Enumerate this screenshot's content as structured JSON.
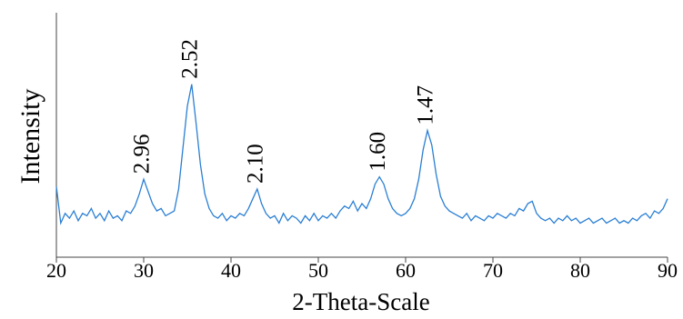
{
  "chart_data": {
    "type": "line",
    "x_label": "2-Theta-Scale",
    "y_label": "Intensity",
    "xlim": [
      20,
      90
    ],
    "xticks": [
      20,
      30,
      40,
      50,
      60,
      70,
      80,
      90
    ],
    "ylim": [
      0,
      100
    ],
    "series": [
      {
        "color": "#2a7fd4",
        "x": [
          20,
          20.5,
          21,
          21.5,
          22,
          22.5,
          23,
          23.5,
          24,
          24.5,
          25,
          25.5,
          26,
          26.5,
          27,
          27.5,
          28,
          28.5,
          29,
          29.5,
          30,
          30.5,
          31,
          31.5,
          32,
          32.5,
          33,
          33.5,
          34,
          34.5,
          35,
          35.5,
          36,
          36.5,
          37,
          37.5,
          38,
          38.5,
          39,
          39.5,
          40,
          40.5,
          41,
          41.5,
          42,
          42.5,
          43,
          43.5,
          44,
          44.5,
          45,
          45.5,
          46,
          46.5,
          47,
          47.5,
          48,
          48.5,
          49,
          49.5,
          50,
          50.5,
          51,
          51.5,
          52,
          52.5,
          53,
          53.5,
          54,
          54.5,
          55,
          55.5,
          56,
          56.5,
          57,
          57.5,
          58,
          58.5,
          59,
          59.5,
          60,
          60.5,
          61,
          61.5,
          62,
          62.5,
          63,
          63.5,
          64,
          64.5,
          65,
          65.5,
          66,
          66.5,
          67,
          67.5,
          68,
          68.5,
          69,
          69.5,
          70,
          70.5,
          71,
          71.5,
          72,
          72.5,
          73,
          73.5,
          74,
          74.5,
          75,
          75.5,
          76,
          76.5,
          77,
          77.5,
          78,
          78.5,
          79,
          79.5,
          80,
          80.5,
          81,
          81.5,
          82,
          82.5,
          83,
          83.5,
          84,
          84.5,
          85,
          85.5,
          86,
          86.5,
          87,
          87.5,
          88,
          88.5,
          89,
          89.5,
          90
        ],
        "values": [
          29,
          14,
          18,
          16,
          19,
          15,
          18,
          17,
          20,
          16,
          18,
          15,
          19,
          16,
          17,
          15,
          19,
          18,
          21,
          26,
          32,
          27,
          22,
          19,
          20,
          17,
          18,
          19,
          28,
          45,
          62,
          71,
          55,
          38,
          26,
          20,
          17,
          16,
          18,
          15,
          17,
          16,
          18,
          17,
          20,
          24,
          28,
          22,
          18,
          16,
          17,
          14,
          18,
          15,
          17,
          16,
          14,
          17,
          15,
          18,
          15,
          17,
          16,
          18,
          16,
          19,
          21,
          20,
          23,
          19,
          22,
          20,
          24,
          30,
          33,
          30,
          24,
          20,
          18,
          17,
          18,
          20,
          24,
          32,
          44,
          52,
          46,
          34,
          25,
          21,
          19,
          18,
          17,
          16,
          18,
          15,
          17,
          16,
          15,
          17,
          16,
          18,
          17,
          16,
          18,
          17,
          20,
          19,
          22,
          23,
          18,
          16,
          15,
          16,
          14,
          16,
          15,
          17,
          15,
          16,
          14,
          15,
          16,
          14,
          15,
          16,
          14,
          15,
          16,
          14,
          15,
          14,
          16,
          15,
          17,
          18,
          16,
          19,
          18,
          20,
          24
        ]
      }
    ],
    "annotations": [
      {
        "text": "2.96",
        "x": 30
      },
      {
        "text": "2.52",
        "x": 35.5
      },
      {
        "text": "2.10",
        "x": 43
      },
      {
        "text": "1.60",
        "x": 57
      },
      {
        "text": "1.47",
        "x": 62.5
      }
    ]
  }
}
